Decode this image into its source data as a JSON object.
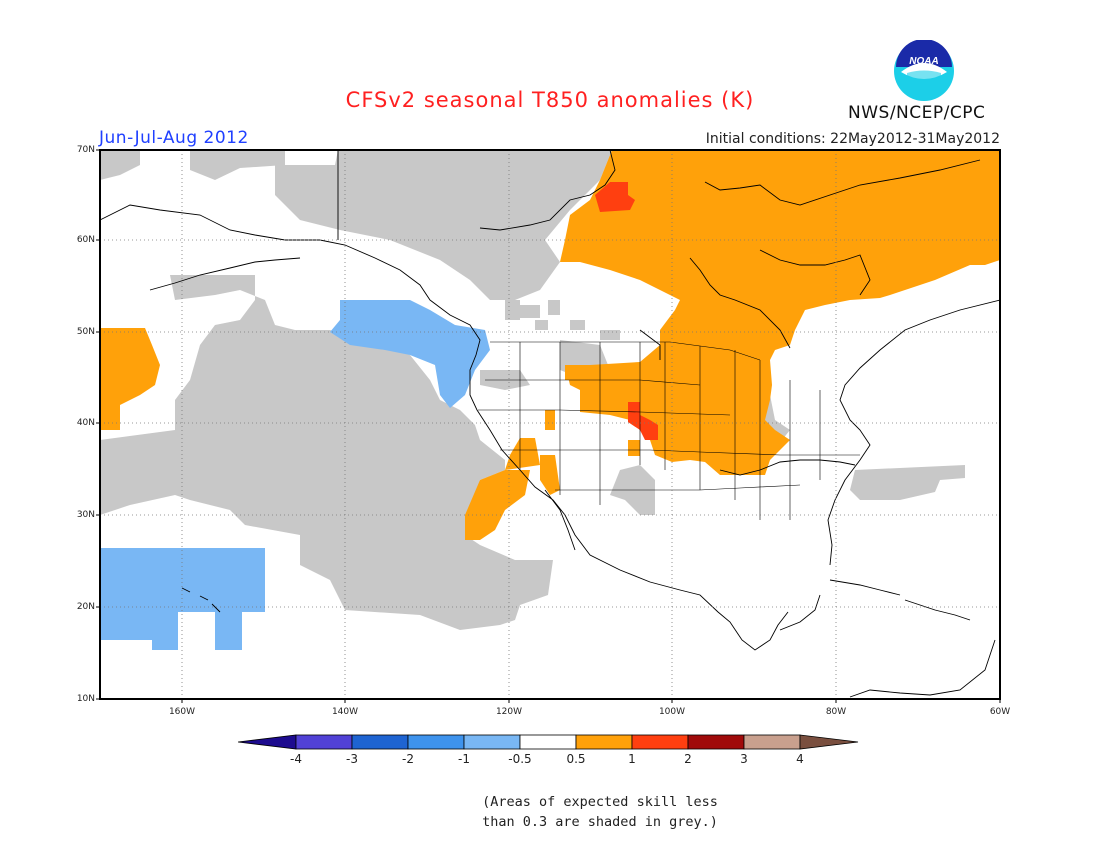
{
  "title": "CFSv2 seasonal T850 anomalies (K)",
  "period": "Jun-Jul-Aug 2012",
  "initial_conditions": "Initial conditions: 22May2012-31May2012",
  "agency": "NWS/NCEP/CPC",
  "logo_text": "NOAA",
  "lat_labels": [
    "70N",
    "60N",
    "50N",
    "40N",
    "30N",
    "20N",
    "10N"
  ],
  "lon_labels": [
    "160W",
    "140W",
    "120W",
    "100W",
    "80W",
    "60W"
  ],
  "colorbar": {
    "labels": [
      "-4",
      "-3",
      "-2",
      "-1",
      "-0.5",
      "0.5",
      "1",
      "2",
      "3",
      "4"
    ],
    "colors": [
      "#1d0b8f",
      "#5141d6",
      "#1e64d2",
      "#3e93ed",
      "#79b7f4",
      "#ffffff",
      "#ffa10a",
      "#ff3f10",
      "#a00a0a",
      "#c9a08e",
      "#7a4f3f"
    ]
  },
  "note_line1": "(Areas of expected skill less",
  "note_line2": "than 0.3 are shaded in grey.)",
  "legend_colors": {
    "grey": "#c8c8c8",
    "warm_05_1": "#ffa10a",
    "warm_1_2": "#ff3f10",
    "cool_05_1": "#79b7f4"
  }
}
